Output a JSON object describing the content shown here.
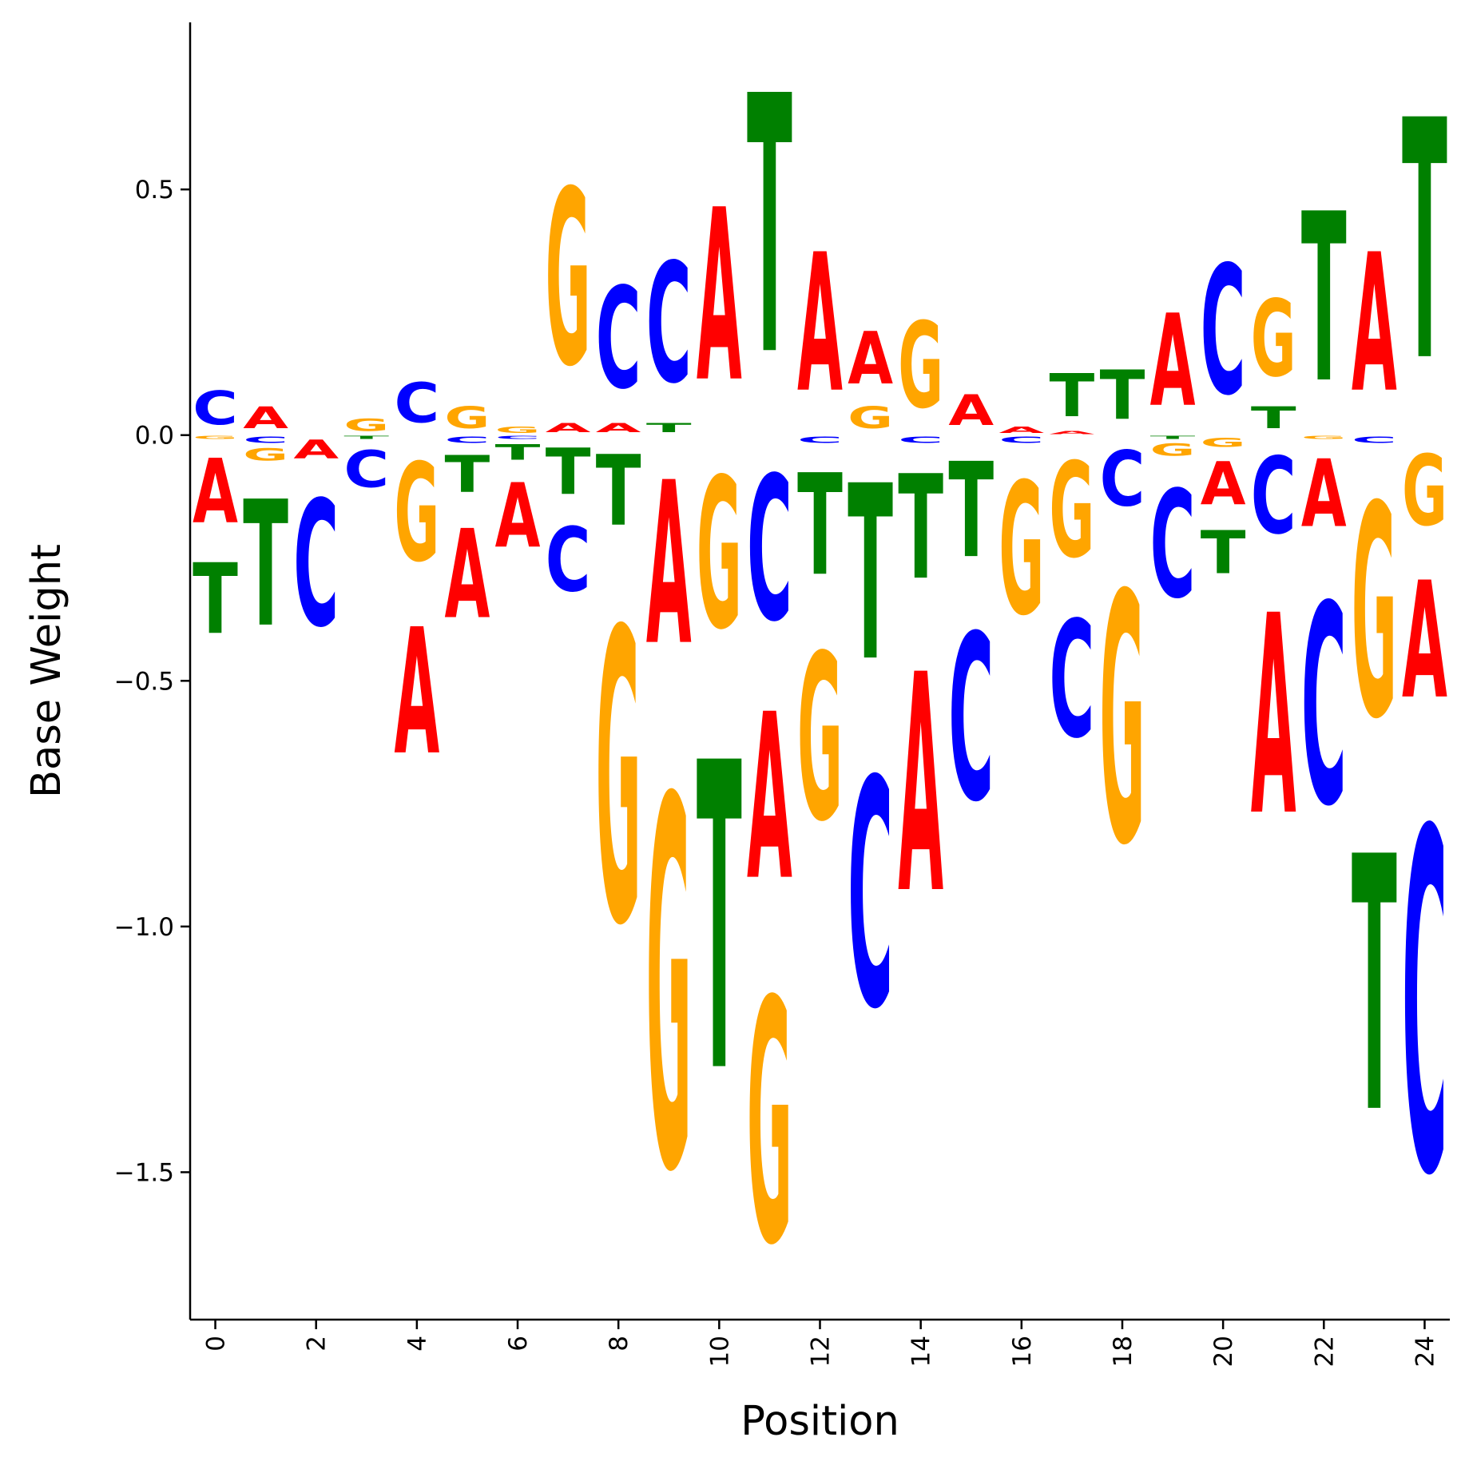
{
  "chart_data": {
    "type": "sequence-logo",
    "xlabel": "Position",
    "ylabel": "Base Weight",
    "xlim": [
      -0.5,
      24.5
    ],
    "ylim": [
      -1.8,
      0.84
    ],
    "x_ticks": [
      0,
      2,
      4,
      6,
      8,
      10,
      12,
      14,
      16,
      18,
      20,
      22,
      24
    ],
    "y_ticks": [
      0.5,
      0.0,
      -0.5,
      -1.0,
      -1.5
    ],
    "y_tick_labels": [
      "0.5",
      "0.0",
      "−0.5",
      "−1.0",
      "−1.5"
    ],
    "grid": false,
    "legend": "none",
    "colors": {
      "A": "#ff0000",
      "C": "#0000ff",
      "G": "#ffa500",
      "T": "#008000"
    },
    "positions": [
      {
        "pos": 0,
        "A": -0.21,
        "C": 0.11,
        "G": -0.01,
        "T": -0.23
      },
      {
        "pos": 1,
        "A": 0.07,
        "C": -0.02,
        "G": -0.04,
        "T": -0.41
      },
      {
        "pos": 2,
        "A": -0.06,
        "C": -0.41,
        "G": 0.0,
        "T": 0.0
      },
      {
        "pos": 3,
        "A": 0.0,
        "C": -0.12,
        "G": 0.04,
        "T": -0.01
      },
      {
        "pos": 4,
        "A": -0.41,
        "C": 0.13,
        "G": -0.32,
        "T": 0.0
      },
      {
        "pos": 5,
        "A": -0.29,
        "C": -0.02,
        "G": 0.07,
        "T": -0.12
      },
      {
        "pos": 6,
        "A": -0.21,
        "C": -0.01,
        "G": 0.02,
        "T": -0.05
      },
      {
        "pos": 7,
        "A": 0.03,
        "C": -0.21,
        "G": 0.57,
        "T": -0.15
      },
      {
        "pos": 8,
        "A": 0.03,
        "C": 0.33,
        "G": -0.95,
        "T": -0.23
      },
      {
        "pos": 9,
        "A": -0.53,
        "C": 0.39,
        "G": -1.2,
        "T": 0.03
      },
      {
        "pos": 10,
        "A": 0.56,
        "C": 0.0,
        "G": -0.49,
        "T": -1.0
      },
      {
        "pos": 11,
        "A": -0.54,
        "C": -0.47,
        "G": -0.79,
        "T": 0.84
      },
      {
        "pos": 12,
        "A": 0.45,
        "C": -0.02,
        "G": -0.54,
        "T": -0.33
      },
      {
        "pos": 13,
        "A": 0.17,
        "C": -0.74,
        "G": 0.07,
        "T": -0.57
      },
      {
        "pos": 14,
        "A": -0.71,
        "C": -0.02,
        "G": 0.28,
        "T": -0.34
      },
      {
        "pos": 15,
        "A": 0.1,
        "C": -0.54,
        "G": 0.0,
        "T": -0.31
      },
      {
        "pos": 16,
        "A": 0.02,
        "C": -0.02,
        "G": -0.43,
        "T": 0.0
      },
      {
        "pos": 17,
        "A": 0.01,
        "C": -0.38,
        "G": -0.31,
        "T": 0.14
      },
      {
        "pos": 18,
        "A": 0.0,
        "C": -0.18,
        "G": -0.81,
        "T": 0.16
      },
      {
        "pos": 19,
        "A": 0.3,
        "C": -0.35,
        "G": -0.04,
        "T": -0.01
      },
      {
        "pos": 20,
        "A": -0.14,
        "C": 0.42,
        "G": -0.03,
        "T": -0.14
      },
      {
        "pos": 21,
        "A": -0.65,
        "C": -0.25,
        "G": 0.25,
        "T": 0.07
      },
      {
        "pos": 22,
        "A": -0.22,
        "C": -0.65,
        "G": -0.01,
        "T": 0.55
      },
      {
        "pos": 23,
        "A": 0.45,
        "C": -0.02,
        "G": -0.69,
        "T": -0.83
      },
      {
        "pos": 24,
        "A": -0.38,
        "C": -1.11,
        "G": -0.23,
        "T": 0.78
      }
    ]
  }
}
